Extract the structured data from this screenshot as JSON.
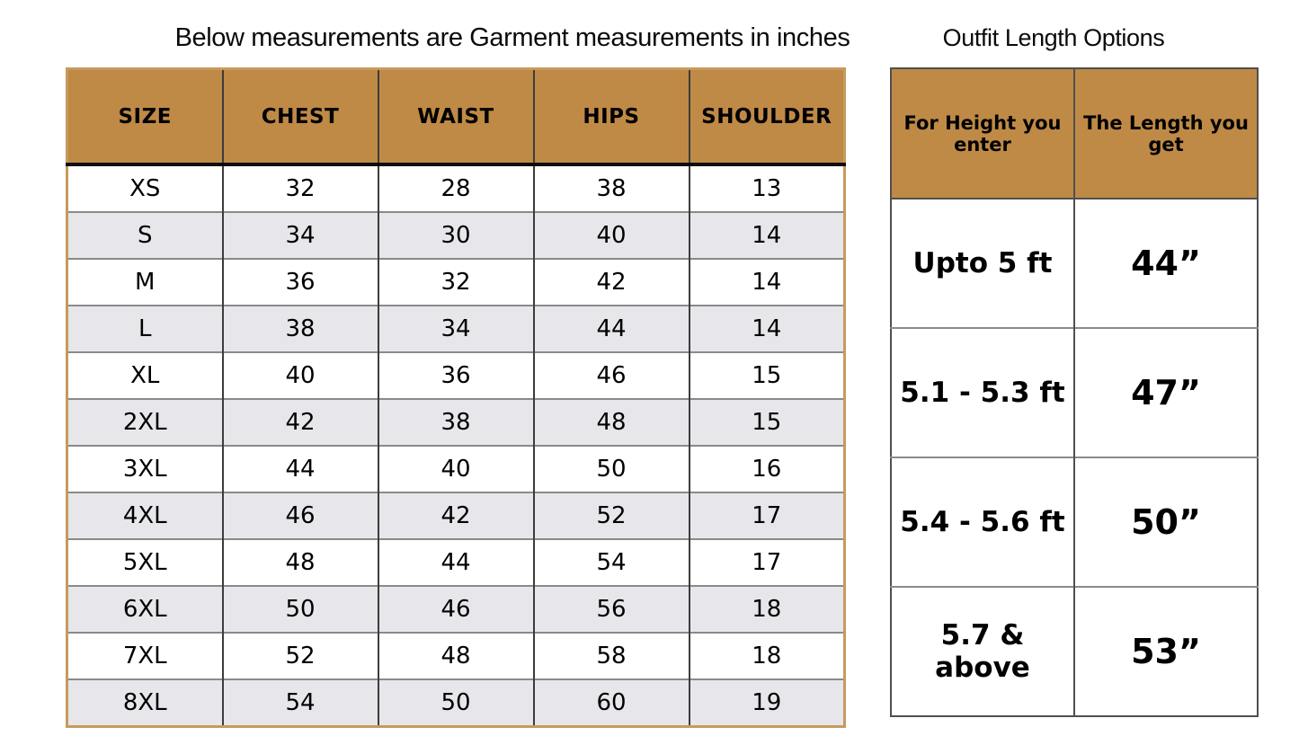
{
  "colors": {
    "header_fill": "#bf8a46",
    "row_fill": "#ffffff",
    "row_alt_fill": "#e7e6ea",
    "outer_border": "#c79a5e",
    "grid_vertical": "#3c3c3c",
    "grid_horizontal": "#8a8a8a",
    "header_underline": "#0d0d0d",
    "right_border": "#4f4f4f",
    "text": "#000000"
  },
  "size_chart": {
    "title": "Below measurements are Garment measurements in inches",
    "columns": [
      "SIZE",
      "CHEST",
      "WAIST",
      "HIPS",
      "SHOULDER"
    ],
    "rows": [
      [
        "XS",
        "32",
        "28",
        "38",
        "13"
      ],
      [
        "S",
        "34",
        "30",
        "40",
        "14"
      ],
      [
        "M",
        "36",
        "32",
        "42",
        "14"
      ],
      [
        "L",
        "38",
        "34",
        "44",
        "14"
      ],
      [
        "XL",
        "40",
        "36",
        "46",
        "15"
      ],
      [
        "2XL",
        "42",
        "38",
        "48",
        "15"
      ],
      [
        "3XL",
        "44",
        "40",
        "50",
        "16"
      ],
      [
        "4XL",
        "46",
        "42",
        "52",
        "17"
      ],
      [
        "5XL",
        "48",
        "44",
        "54",
        "17"
      ],
      [
        "6XL",
        "50",
        "46",
        "56",
        "18"
      ],
      [
        "7XL",
        "52",
        "48",
        "58",
        "18"
      ],
      [
        "8XL",
        "54",
        "50",
        "60",
        "19"
      ]
    ]
  },
  "length_options": {
    "title": "Outfit Length Options",
    "columns": [
      "For Height you enter",
      "The Length you get"
    ],
    "rows": [
      [
        "Upto 5 ft",
        "44”"
      ],
      [
        "5.1 - 5.3 ft",
        "47”"
      ],
      [
        "5.4 - 5.6 ft",
        "50”"
      ],
      [
        "5.7 & above",
        "53”"
      ]
    ]
  }
}
